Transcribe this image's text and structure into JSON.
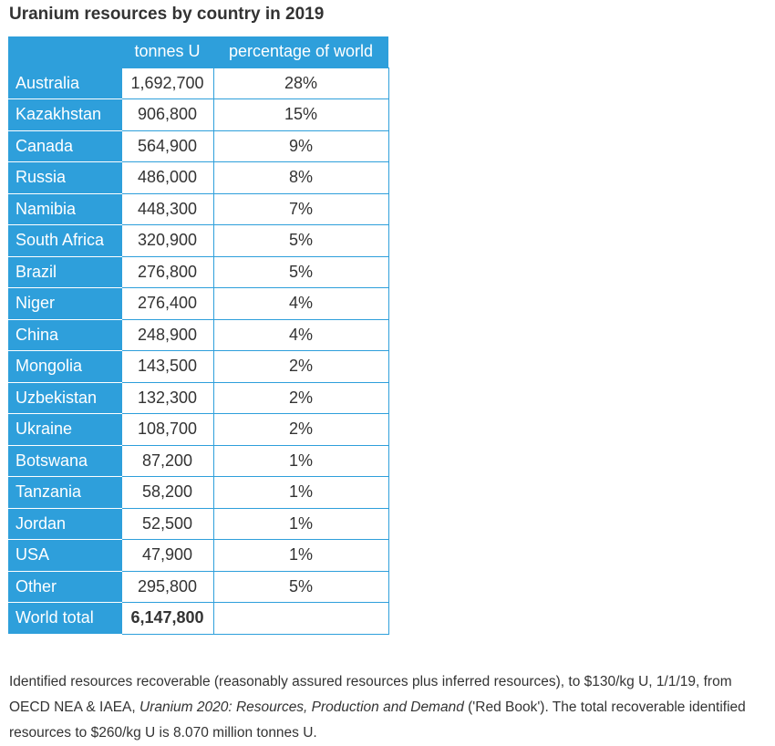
{
  "title": "Uranium resources by country in 2019",
  "table": {
    "headers": [
      "",
      "tonnes U",
      "percentage of world"
    ],
    "rows": [
      {
        "country": "Australia",
        "tonnes": "1,692,700",
        "percent": "28%"
      },
      {
        "country": "Kazakhstan",
        "tonnes": "906,800",
        "percent": "15%"
      },
      {
        "country": "Canada",
        "tonnes": "564,900",
        "percent": "9%"
      },
      {
        "country": "Russia",
        "tonnes": "486,000",
        "percent": "8%"
      },
      {
        "country": "Namibia",
        "tonnes": "448,300",
        "percent": "7%"
      },
      {
        "country": "South Africa",
        "tonnes": "320,900",
        "percent": "5%"
      },
      {
        "country": "Brazil",
        "tonnes": "276,800",
        "percent": "5%"
      },
      {
        "country": "Niger",
        "tonnes": "276,400",
        "percent": "4%"
      },
      {
        "country": "China",
        "tonnes": "248,900",
        "percent": "4%"
      },
      {
        "country": "Mongolia",
        "tonnes": "143,500",
        "percent": "2%"
      },
      {
        "country": "Uzbekistan",
        "tonnes": "132,300",
        "percent": "2%"
      },
      {
        "country": "Ukraine",
        "tonnes": "108,700",
        "percent": "2%"
      },
      {
        "country": "Botswana",
        "tonnes": "87,200",
        "percent": "1%"
      },
      {
        "country": "Tanzania",
        "tonnes": "58,200",
        "percent": "1%"
      },
      {
        "country": "Jordan",
        "tonnes": "52,500",
        "percent": "1%"
      },
      {
        "country": "USA",
        "tonnes": "47,900",
        "percent": "1%"
      },
      {
        "country": "Other",
        "tonnes": "295,800",
        "percent": "5%"
      }
    ],
    "total": {
      "label": "World total",
      "tonnes": "6,147,800",
      "percent": ""
    }
  },
  "footnote": {
    "before": "Identified resources recoverable (reasonably assured resources plus inferred resources), to $130/kg U, 1/1/19, from OECD NEA & IAEA, ",
    "italic": "Uranium 2020: Resources, Production and Demand",
    "after": " ('Red Book'). The total recoverable identified resources to $260/kg U is 8.070 million tonnes U."
  },
  "colors": {
    "header_blue": "#2e9fdb",
    "text": "#333333"
  }
}
